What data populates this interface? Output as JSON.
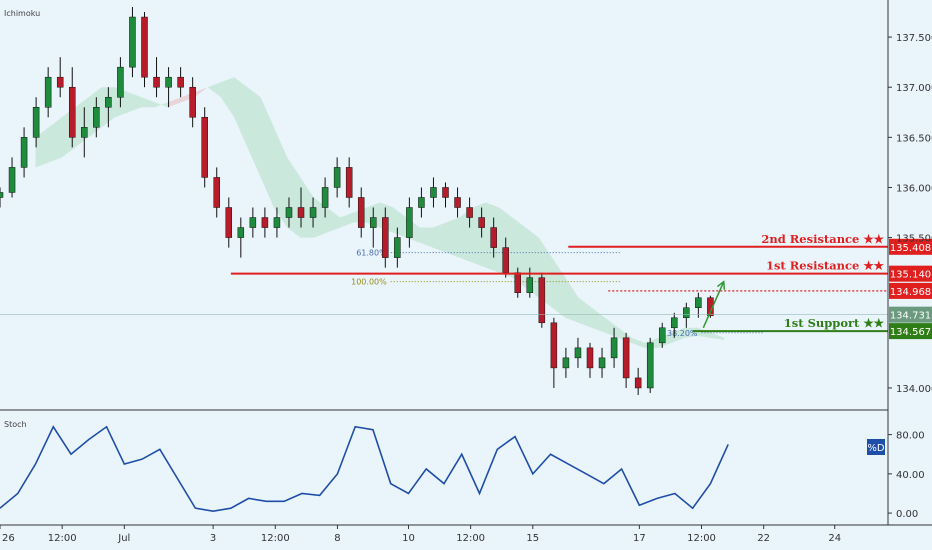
{
  "chart_data": [
    {
      "type": "candlestick",
      "indicator_label": "Ichimoku",
      "price_axis_ticks": [
        "137.500",
        "137.000",
        "136.500",
        "136.000",
        "135.500",
        "134.000"
      ],
      "price_axis_values": [
        137.5,
        137.0,
        136.5,
        136.0,
        135.5,
        134.0
      ],
      "ylim": [
        133.78,
        137.87
      ],
      "x_ticks": [
        "26",
        "12:00",
        "Jul",
        "3",
        "12:00",
        "8",
        "10",
        "12:00",
        "15",
        "17",
        "12:00",
        "22",
        "24"
      ],
      "x_positions": [
        0,
        7,
        14,
        24,
        31,
        38,
        46,
        53,
        60,
        72,
        79,
        86,
        94
      ],
      "x_range": [
        0,
        100
      ],
      "candles": [
        [
          135.9,
          136.0,
          135.8,
          135.95
        ],
        [
          135.95,
          136.3,
          135.9,
          136.2
        ],
        [
          136.2,
          136.6,
          136.1,
          136.5
        ],
        [
          136.5,
          136.9,
          136.4,
          136.8
        ],
        [
          136.8,
          137.2,
          136.7,
          137.1
        ],
        [
          137.1,
          137.3,
          136.9,
          137.0
        ],
        [
          137.0,
          137.2,
          136.4,
          136.5
        ],
        [
          136.5,
          136.8,
          136.3,
          136.6
        ],
        [
          136.6,
          136.9,
          136.5,
          136.8
        ],
        [
          136.8,
          137.0,
          136.6,
          136.9
        ],
        [
          136.9,
          137.3,
          136.8,
          137.2
        ],
        [
          137.2,
          137.8,
          137.1,
          137.7
        ],
        [
          137.7,
          137.75,
          137.0,
          137.1
        ],
        [
          137.1,
          137.3,
          136.9,
          137.0
        ],
        [
          137.0,
          137.2,
          136.8,
          137.1
        ],
        [
          137.1,
          137.2,
          136.9,
          137.0
        ],
        [
          137.0,
          137.1,
          136.6,
          136.7
        ],
        [
          136.7,
          136.8,
          136.0,
          136.1
        ],
        [
          136.1,
          136.2,
          135.7,
          135.8
        ],
        [
          135.8,
          135.9,
          135.4,
          135.5
        ],
        [
          135.5,
          135.7,
          135.3,
          135.6
        ],
        [
          135.6,
          135.8,
          135.5,
          135.7
        ],
        [
          135.7,
          135.8,
          135.5,
          135.6
        ],
        [
          135.6,
          135.8,
          135.5,
          135.7
        ],
        [
          135.7,
          135.9,
          135.6,
          135.8
        ],
        [
          135.8,
          136.0,
          135.6,
          135.7
        ],
        [
          135.7,
          135.9,
          135.6,
          135.8
        ],
        [
          135.8,
          136.1,
          135.7,
          136.0
        ],
        [
          136.0,
          136.3,
          135.9,
          136.2
        ],
        [
          136.2,
          136.3,
          135.8,
          135.9
        ],
        [
          135.9,
          136.0,
          135.5,
          135.6
        ],
        [
          135.6,
          135.8,
          135.4,
          135.7
        ],
        [
          135.7,
          135.8,
          135.2,
          135.3
        ],
        [
          135.3,
          135.6,
          135.2,
          135.5
        ],
        [
          135.5,
          135.9,
          135.4,
          135.8
        ],
        [
          135.8,
          136.0,
          135.7,
          135.9
        ],
        [
          135.9,
          136.1,
          135.8,
          136.0
        ],
        [
          136.0,
          136.05,
          135.8,
          135.9
        ],
        [
          135.9,
          136.0,
          135.7,
          135.8
        ],
        [
          135.8,
          135.9,
          135.6,
          135.7
        ],
        [
          135.7,
          135.8,
          135.5,
          135.6
        ],
        [
          135.6,
          135.7,
          135.3,
          135.4
        ],
        [
          135.4,
          135.5,
          135.1,
          135.15
        ],
        [
          135.15,
          135.2,
          134.9,
          134.95
        ],
        [
          134.95,
          135.2,
          134.9,
          135.1
        ],
        [
          135.1,
          135.15,
          134.6,
          134.65
        ],
        [
          134.65,
          134.7,
          134.0,
          134.2
        ],
        [
          134.2,
          134.4,
          134.1,
          134.3
        ],
        [
          134.3,
          134.5,
          134.2,
          134.4
        ],
        [
          134.4,
          134.45,
          134.1,
          134.2
        ],
        [
          134.2,
          134.4,
          134.1,
          134.3
        ],
        [
          134.3,
          134.6,
          134.2,
          134.5
        ],
        [
          134.5,
          134.55,
          134.0,
          134.1
        ],
        [
          134.1,
          134.2,
          133.93,
          134.0
        ],
        [
          134.0,
          134.5,
          133.95,
          134.45
        ],
        [
          134.45,
          134.65,
          134.4,
          134.6
        ],
        [
          134.6,
          134.75,
          134.5,
          134.7
        ],
        [
          134.7,
          134.85,
          134.6,
          134.8
        ],
        [
          134.8,
          134.95,
          134.7,
          134.9
        ],
        [
          134.9,
          134.92,
          134.7,
          134.72
        ]
      ],
      "ichimoku_cloud": {
        "span_a": [
          136.5,
          136.6,
          136.7,
          136.8,
          136.9,
          137.0,
          137.0,
          136.95,
          136.9,
          136.85,
          136.8,
          136.85,
          136.9,
          137.0,
          137.05,
          137.1,
          137.0,
          136.9,
          136.6,
          136.3,
          136.1,
          135.9,
          135.8,
          135.7,
          135.75,
          135.8,
          135.85,
          135.8,
          135.7,
          135.6,
          135.6,
          135.65,
          135.7,
          135.8,
          135.85,
          135.8,
          135.7,
          135.6,
          135.5,
          135.3,
          135.1,
          134.9,
          134.8,
          134.7,
          134.6,
          134.5,
          134.45,
          134.5,
          134.55,
          134.6,
          134.6,
          134.55,
          134.5
        ],
        "span_b": [
          136.2,
          136.25,
          136.3,
          136.4,
          136.5,
          136.6,
          136.7,
          136.75,
          136.8,
          136.8,
          136.85,
          136.9,
          136.95,
          137.0,
          136.9,
          136.7,
          136.4,
          136.1,
          135.8,
          135.6,
          135.5,
          135.5,
          135.55,
          135.6,
          135.65,
          135.65,
          135.6,
          135.55,
          135.5,
          135.45,
          135.4,
          135.35,
          135.3,
          135.25,
          135.2,
          135.15,
          135.1,
          135.0,
          134.9,
          134.8,
          134.7,
          134.65,
          134.6,
          134.55,
          134.5,
          134.45,
          134.4,
          134.4,
          134.45,
          134.5,
          134.52,
          134.5,
          134.48
        ]
      },
      "levels": [
        {
          "label": "2nd Resistance ★★",
          "value": 135.408,
          "tag": "135.408",
          "color": "#e01f1f",
          "style": "solid"
        },
        {
          "label": "1st Resistance ★★",
          "value": 135.14,
          "tag": "135.140",
          "color": "#e01f1f",
          "style": "solid"
        },
        {
          "label": "",
          "value": 134.968,
          "tag": "134.968",
          "color": "#e01f1f",
          "style": "dotted"
        },
        {
          "label": "1st Support ★★",
          "value": 134.567,
          "tag": "134.567",
          "color": "#2e7d17",
          "style": "solid"
        }
      ],
      "current_price": {
        "value": 134.731,
        "tag": "134.731",
        "color": "#6b9a7e"
      },
      "fibonacci": [
        {
          "label": "61.80%",
          "value": 135.35,
          "color": "#4a6fb0"
        },
        {
          "label": "100.00%",
          "value": 135.06,
          "color": "#9a8c10"
        },
        {
          "label": "38.20%",
          "value": 134.55,
          "color": "#4a6fb0"
        }
      ],
      "arrow": {
        "from": [
          79.2,
          134.6
        ],
        "to": [
          81.5,
          135.06
        ],
        "color": "#2e9a2e"
      }
    },
    {
      "type": "line",
      "indicator_label": "Stoch",
      "legend_tag": "%D",
      "series": [
        {
          "name": "%D",
          "color": "#1f4ea8",
          "x": [
            0,
            2,
            4,
            6,
            8,
            10,
            12,
            14,
            16,
            18,
            20,
            22,
            24,
            26,
            28,
            30,
            32,
            34,
            36,
            38,
            40,
            42,
            44,
            46,
            48,
            50,
            52,
            54,
            56,
            58,
            60,
            62,
            64,
            66,
            68,
            70,
            72,
            74,
            76,
            78,
            80,
            82
          ],
          "values": [
            5,
            20,
            50,
            88,
            60,
            75,
            88,
            50,
            55,
            65,
            35,
            5,
            2,
            5,
            15,
            12,
            12,
            20,
            18,
            40,
            88,
            85,
            30,
            20,
            45,
            30,
            60,
            20,
            65,
            78,
            40,
            60,
            50,
            40,
            30,
            45,
            8,
            15,
            20,
            5,
            30,
            70
          ]
        }
      ],
      "y_ticks": [
        "80.00",
        "40.00",
        "0.00"
      ],
      "y_tick_values": [
        80,
        40,
        0
      ],
      "ylim": [
        -5,
        100
      ]
    }
  ]
}
